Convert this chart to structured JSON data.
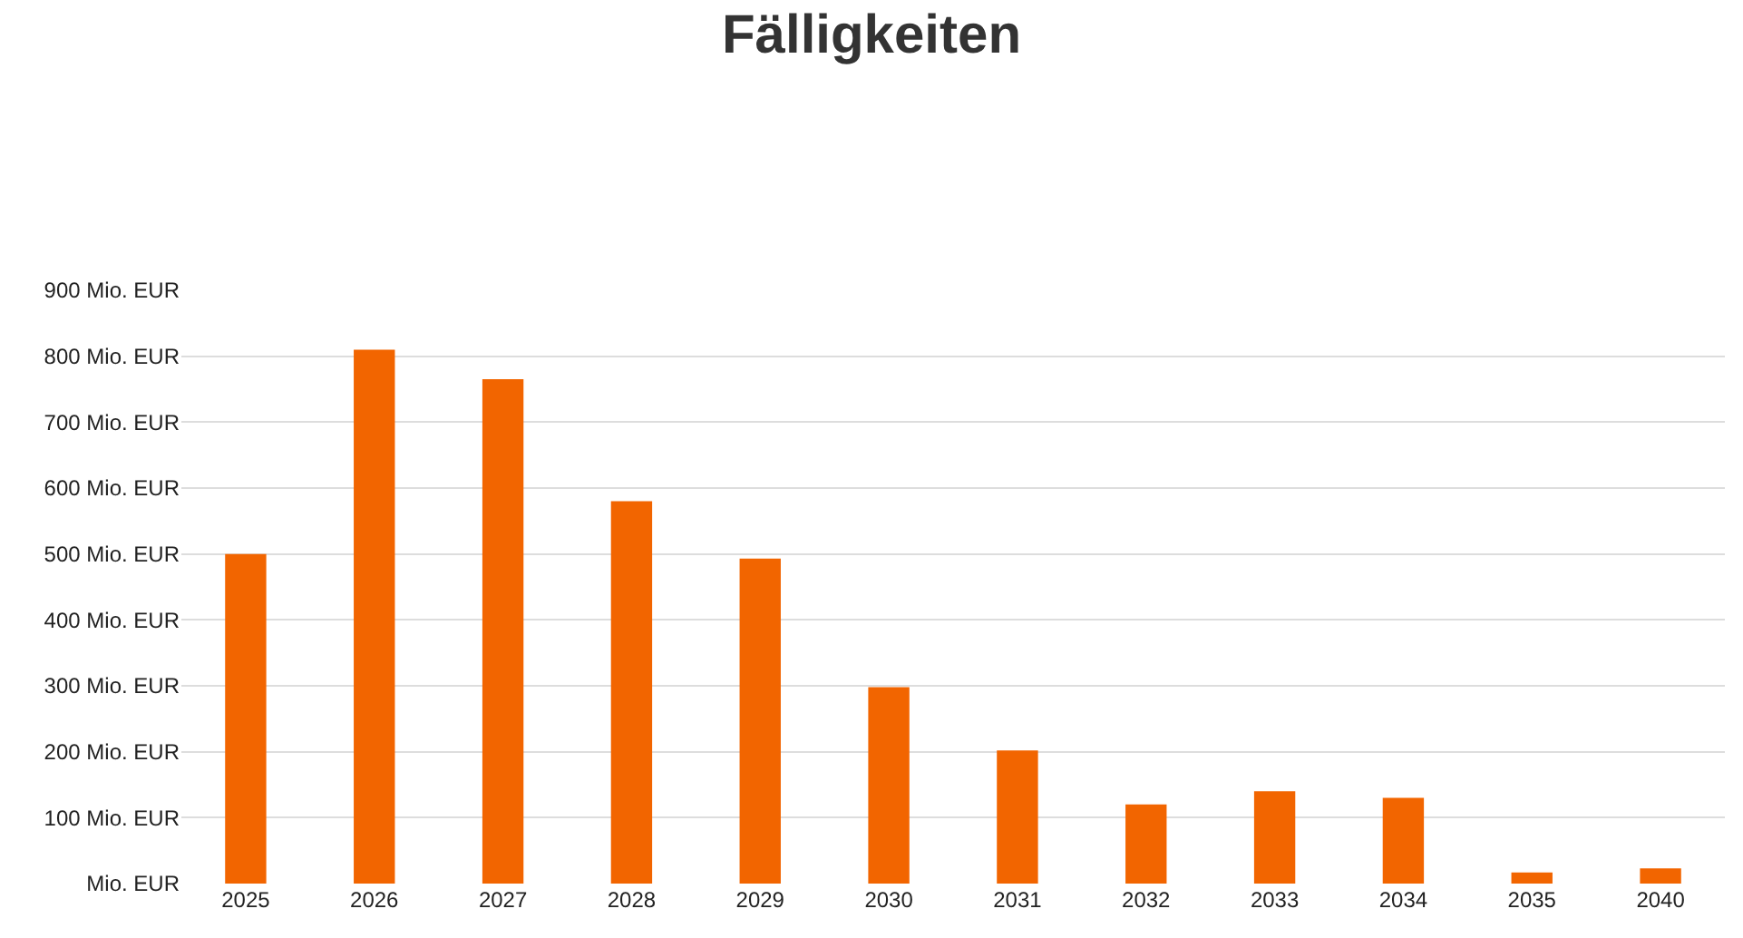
{
  "chart_data": {
    "type": "bar",
    "title": "Fälligkeiten",
    "categories": [
      "2025",
      "2026",
      "2027",
      "2028",
      "2029",
      "2030",
      "2031",
      "2032",
      "2033",
      "2034",
      "2035",
      "2040"
    ],
    "values": [
      500,
      810,
      765,
      580,
      493,
      298,
      202,
      120,
      140,
      130,
      17,
      23
    ],
    "color": "#f26500",
    "ylim": [
      0,
      900
    ],
    "yticks": [
      {
        "value": 0,
        "label": "Mio. EUR"
      },
      {
        "value": 100,
        "label": "100 Mio. EUR"
      },
      {
        "value": 200,
        "label": "200 Mio. EUR"
      },
      {
        "value": 300,
        "label": "300 Mio. EUR"
      },
      {
        "value": 400,
        "label": "400 Mio. EUR"
      },
      {
        "value": 500,
        "label": "500 Mio. EUR"
      },
      {
        "value": 600,
        "label": "600 Mio. EUR"
      },
      {
        "value": 700,
        "label": "700 Mio. EUR"
      },
      {
        "value": 800,
        "label": "800 Mio. EUR"
      },
      {
        "value": 900,
        "label": "900 Mio. EUR"
      }
    ],
    "grid": "y"
  }
}
